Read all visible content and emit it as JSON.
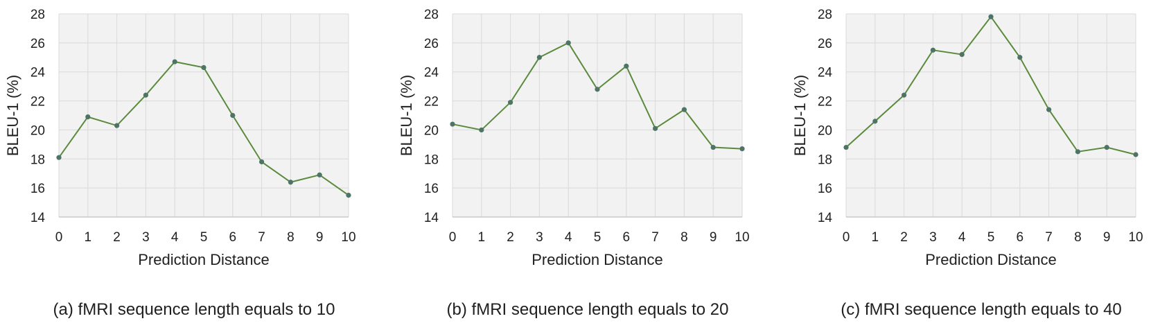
{
  "chart_data": [
    {
      "type": "line",
      "caption": "(a) fMRI sequence length equals to 10",
      "xlabel": "Prediction Distance",
      "ylabel": "BLEU-1 (%)",
      "x": [
        0,
        1,
        2,
        3,
        4,
        5,
        6,
        7,
        8,
        9,
        10
      ],
      "values": [
        18.1,
        20.9,
        20.3,
        22.4,
        24.7,
        24.3,
        21.0,
        17.8,
        16.4,
        16.9,
        15.5
      ],
      "ylim": [
        14,
        28
      ],
      "yticks": [
        14,
        16,
        18,
        20,
        22,
        24,
        26,
        28
      ],
      "grid": true,
      "line_color": "#5a8a3c",
      "marker_color": "#4e7466",
      "plot_bg": "#f2f2f2"
    },
    {
      "type": "line",
      "caption": "(b) fMRI sequence length equals to 20",
      "xlabel": "Prediction Distance",
      "ylabel": "BLEU-1 (%)",
      "x": [
        0,
        1,
        2,
        3,
        4,
        5,
        6,
        7,
        8,
        9,
        10
      ],
      "values": [
        20.4,
        20.0,
        21.9,
        25.0,
        26.0,
        22.8,
        24.4,
        20.1,
        21.4,
        18.8,
        18.7
      ],
      "ylim": [
        14,
        28
      ],
      "yticks": [
        14,
        16,
        18,
        20,
        22,
        24,
        26,
        28
      ],
      "grid": true,
      "line_color": "#5a8a3c",
      "marker_color": "#4e7466",
      "plot_bg": "#f2f2f2"
    },
    {
      "type": "line",
      "caption": "(c) fMRI sequence length equals to 40",
      "xlabel": "Prediction Distance",
      "ylabel": "BLEU-1 (%)",
      "x": [
        0,
        1,
        2,
        3,
        4,
        5,
        6,
        7,
        8,
        9,
        10
      ],
      "values": [
        18.8,
        20.6,
        22.4,
        25.5,
        25.2,
        27.8,
        25.0,
        21.4,
        18.5,
        18.8,
        18.3
      ],
      "ylim": [
        14,
        28
      ],
      "yticks": [
        14,
        16,
        18,
        20,
        22,
        24,
        26,
        28
      ],
      "grid": true,
      "line_color": "#5a8a3c",
      "marker_color": "#4e7466",
      "plot_bg": "#f2f2f2"
    }
  ]
}
